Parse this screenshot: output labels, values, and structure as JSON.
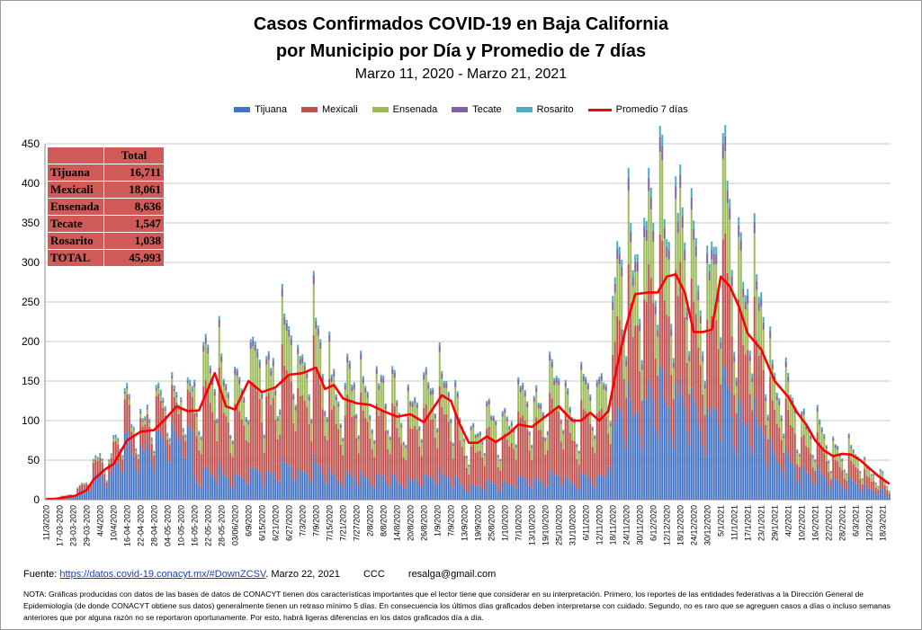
{
  "chart_data": {
    "type": "bar",
    "stacked": true,
    "title": "Casos Confirmados COVID-19 en Baja California",
    "title_line2": "por Municipio por Día y Promedio de 7 días",
    "subtitle": "Marzo 11, 2020  - Marzo 21, 2021",
    "ylim": [
      0,
      450
    ],
    "yticks": [
      0,
      50,
      100,
      150,
      200,
      250,
      300,
      350,
      400,
      450
    ],
    "grid": true,
    "legend_position": "top",
    "x_start": "2020-03-11",
    "x_end": "2021-03-21",
    "x_tick_labels": [
      "11/3/2020",
      "17-03-2020",
      "23-03-2020",
      "29-03-2020",
      "4/4/2020",
      "10/4/2020",
      "16-04-2020",
      "22-04-2020",
      "28-04-2020",
      "04-05-2020",
      "10-05-2020",
      "16-05-2020",
      "22-05-2020",
      "28-05-2020",
      "03/06/2020",
      "6/9/2020",
      "6/15/2020",
      "6/21/2020",
      "6/27/2020",
      "7/3/2020",
      "7/9/2020",
      "7/15/2020",
      "7/21/2020",
      "7/27/2020",
      "2/8/2020",
      "8/8/2020",
      "14/8/2020",
      "20/8/2020",
      "26/8/2020",
      "1/9/2020",
      "7/9/2020",
      "13/9/2020",
      "19/9/2020",
      "25/8/2020",
      "1/10/2020",
      "7/10/2020",
      "13/10/2020",
      "19/10/2020",
      "25/10/2020",
      "31/10/2020",
      "6/11/2020",
      "12/11/2020",
      "18/11/2020",
      "24/11/2020",
      "30/11/2020",
      "6/12/2020",
      "12/12/2020",
      "18/12/2020",
      "24/12/2020",
      "30/12/2020",
      "5/1/2021",
      "11/1/2021",
      "17/1/2021",
      "23/1/2021",
      "29/1/2021",
      "4/2/2021",
      "10/2/2021",
      "16/2/2021",
      "22/2/2021",
      "28/2/2021",
      "6/3/2021",
      "12/3/2021",
      "18/3/2021"
    ],
    "series": [
      {
        "name": "Tijuana",
        "color": "#4472c4"
      },
      {
        "name": "Mexicali",
        "color": "#c0504d"
      },
      {
        "name": "Ensenada",
        "color": "#9bbb59"
      },
      {
        "name": "Tecate",
        "color": "#8064a2"
      },
      {
        "name": "Rosarito",
        "color": "#4bacc6"
      }
    ],
    "line_series": {
      "name": "Promedio 7 días",
      "color": "#ff0000"
    },
    "daily_total_anchors": [
      [
        "2020-03-11",
        1
      ],
      [
        "2020-03-17",
        3
      ],
      [
        "2020-03-23",
        8
      ],
      [
        "2020-03-29",
        20
      ],
      [
        "2020-04-02",
        40
      ],
      [
        "2020-04-04",
        65
      ],
      [
        "2020-04-08",
        45
      ],
      [
        "2020-04-10",
        60
      ],
      [
        "2020-04-14",
        90
      ],
      [
        "2020-04-16",
        100
      ],
      [
        "2020-04-22",
        95
      ],
      [
        "2020-04-28",
        100
      ],
      [
        "2020-05-03",
        130
      ],
      [
        "2020-05-08",
        135
      ],
      [
        "2020-05-13",
        115
      ],
      [
        "2020-05-18",
        135
      ],
      [
        "2020-05-22",
        200
      ],
      [
        "2020-05-26",
        165
      ],
      [
        "2020-05-30",
        120
      ],
      [
        "2020-06-03",
        150
      ],
      [
        "2020-06-09",
        145
      ],
      [
        "2020-06-15",
        160
      ],
      [
        "2020-06-21",
        170
      ],
      [
        "2020-06-27",
        180
      ],
      [
        "2020-07-03",
        175
      ],
      [
        "2020-07-07",
        190
      ],
      [
        "2020-07-11",
        160
      ],
      [
        "2020-07-15",
        150
      ],
      [
        "2020-07-21",
        135
      ],
      [
        "2020-07-27",
        130
      ],
      [
        "2020-08-02",
        130
      ],
      [
        "2020-08-08",
        125
      ],
      [
        "2020-08-14",
        110
      ],
      [
        "2020-08-20",
        120
      ],
      [
        "2020-08-26",
        110
      ],
      [
        "2020-09-01",
        165
      ],
      [
        "2020-09-05",
        140
      ],
      [
        "2020-09-09",
        100
      ],
      [
        "2020-09-13",
        80
      ],
      [
        "2020-09-19",
        85
      ],
      [
        "2020-09-25",
        90
      ],
      [
        "2020-10-01",
        95
      ],
      [
        "2020-10-07",
        110
      ],
      [
        "2020-10-13",
        115
      ],
      [
        "2020-10-19",
        125
      ],
      [
        "2020-10-25",
        135
      ],
      [
        "2020-10-31",
        110
      ],
      [
        "2020-11-06",
        120
      ],
      [
        "2020-11-12",
        130
      ],
      [
        "2020-11-16",
        170
      ],
      [
        "2020-11-20",
        240
      ],
      [
        "2020-11-24",
        290
      ],
      [
        "2020-11-30",
        320
      ],
      [
        "2020-12-06",
        330
      ],
      [
        "2020-12-12",
        340
      ],
      [
        "2020-12-18",
        345
      ],
      [
        "2020-12-21",
        290
      ],
      [
        "2020-12-24",
        270
      ],
      [
        "2020-12-30",
        260
      ],
      [
        "2021-01-05",
        330
      ],
      [
        "2021-01-09",
        320
      ],
      [
        "2021-01-13",
        280
      ],
      [
        "2021-01-17",
        250
      ],
      [
        "2021-01-23",
        210
      ],
      [
        "2021-01-29",
        150
      ],
      [
        "2021-02-04",
        110
      ],
      [
        "2021-02-10",
        95
      ],
      [
        "2021-02-16",
        80
      ],
      [
        "2021-02-22",
        65
      ],
      [
        "2021-02-28",
        60
      ],
      [
        "2021-03-06",
        50
      ],
      [
        "2021-03-12",
        38
      ],
      [
        "2021-03-18",
        25
      ],
      [
        "2021-03-21",
        10
      ]
    ],
    "share_by_phase": [
      {
        "until": "2020-05-15",
        "Tijuana": 0.6,
        "Mexicali": 0.3,
        "Ensenada": 0.05,
        "Tecate": 0.02,
        "Rosarito": 0.03
      },
      {
        "until": "2020-11-15",
        "Tijuana": 0.2,
        "Mexicali": 0.52,
        "Ensenada": 0.22,
        "Tecate": 0.04,
        "Rosarito": 0.02
      },
      {
        "until": "2021-03-21",
        "Tijuana": 0.36,
        "Mexicali": 0.35,
        "Ensenada": 0.22,
        "Tecate": 0.04,
        "Rosarito": 0.03
      }
    ],
    "avg7_anchors": [
      [
        "2020-03-15",
        1
      ],
      [
        "2020-03-24",
        5
      ],
      [
        "2020-03-29",
        12
      ],
      [
        "2020-04-01",
        25
      ],
      [
        "2020-04-06",
        38
      ],
      [
        "2020-04-10",
        45
      ],
      [
        "2020-04-16",
        75
      ],
      [
        "2020-04-22",
        86
      ],
      [
        "2020-04-28",
        88
      ],
      [
        "2020-05-03",
        102
      ],
      [
        "2020-05-08",
        118
      ],
      [
        "2020-05-13",
        112
      ],
      [
        "2020-05-18",
        113
      ],
      [
        "2020-05-22",
        140
      ],
      [
        "2020-05-25",
        160
      ],
      [
        "2020-05-30",
        118
      ],
      [
        "2020-06-03",
        114
      ],
      [
        "2020-06-09",
        150
      ],
      [
        "2020-06-15",
        136
      ],
      [
        "2020-06-21",
        142
      ],
      [
        "2020-06-27",
        158
      ],
      [
        "2020-07-03",
        160
      ],
      [
        "2020-07-09",
        167
      ],
      [
        "2020-07-13",
        140
      ],
      [
        "2020-07-17",
        145
      ],
      [
        "2020-07-21",
        128
      ],
      [
        "2020-07-27",
        122
      ],
      [
        "2020-08-02",
        120
      ],
      [
        "2020-08-08",
        112
      ],
      [
        "2020-08-14",
        105
      ],
      [
        "2020-08-20",
        108
      ],
      [
        "2020-08-26",
        98
      ],
      [
        "2020-09-03",
        132
      ],
      [
        "2020-09-07",
        125
      ],
      [
        "2020-09-11",
        95
      ],
      [
        "2020-09-15",
        72
      ],
      [
        "2020-09-19",
        72
      ],
      [
        "2020-09-23",
        80
      ],
      [
        "2020-09-27",
        73
      ],
      [
        "2020-10-03",
        84
      ],
      [
        "2020-10-07",
        95
      ],
      [
        "2020-10-13",
        92
      ],
      [
        "2020-10-19",
        105
      ],
      [
        "2020-10-25",
        118
      ],
      [
        "2020-10-31",
        100
      ],
      [
        "2020-11-04",
        100
      ],
      [
        "2020-11-08",
        110
      ],
      [
        "2020-11-12",
        100
      ],
      [
        "2020-11-16",
        112
      ],
      [
        "2020-11-20",
        170
      ],
      [
        "2020-11-24",
        220
      ],
      [
        "2020-11-28",
        260
      ],
      [
        "2020-12-04",
        262
      ],
      [
        "2020-12-08",
        262
      ],
      [
        "2020-12-12",
        282
      ],
      [
        "2020-12-16",
        285
      ],
      [
        "2020-12-20",
        262
      ],
      [
        "2020-12-24",
        212
      ],
      [
        "2020-12-28",
        212
      ],
      [
        "2021-01-01",
        215
      ],
      [
        "2021-01-05",
        282
      ],
      [
        "2021-01-09",
        270
      ],
      [
        "2021-01-13",
        245
      ],
      [
        "2021-01-17",
        210
      ],
      [
        "2021-01-23",
        190
      ],
      [
        "2021-01-29",
        150
      ],
      [
        "2021-02-04",
        130
      ],
      [
        "2021-02-08",
        110
      ],
      [
        "2021-02-12",
        95
      ],
      [
        "2021-02-16",
        75
      ],
      [
        "2021-02-20",
        62
      ],
      [
        "2021-02-24",
        55
      ],
      [
        "2021-02-28",
        58
      ],
      [
        "2021-03-04",
        57
      ],
      [
        "2021-03-08",
        50
      ],
      [
        "2021-03-12",
        40
      ],
      [
        "2021-03-16",
        30
      ],
      [
        "2021-03-21",
        20
      ]
    ]
  },
  "legend": [
    "Tijuana",
    "Mexicali",
    "Ensenada",
    "Tecate",
    "Rosarito",
    "Promedio 7 días"
  ],
  "totals_table": {
    "header": "Total",
    "rows": [
      {
        "label": "Tijuana",
        "value": "16,711"
      },
      {
        "label": "Mexicali",
        "value": "18,061"
      },
      {
        "label": "Ensenada",
        "value": "8,636"
      },
      {
        "label": "Tecate",
        "value": "1,547"
      },
      {
        "label": "Rosarito",
        "value": "1,038"
      },
      {
        "label": "TOTAL",
        "value": "45,993"
      }
    ]
  },
  "footer": {
    "prefix": "Fuente:",
    "link": "https://datos.covid-19.conacyt.mx/#DownZCSV",
    "date": "Marzo 22, 2021",
    "ccc": "CCC",
    "email": "resalga@gmail.com"
  },
  "note": "NOTA: Gráficas producidas con datos de las bases de datos de CONACYT tienen dos características importantes que el lector tiene que considerar en su interpretación. Primero, los reportes de las entidades federativas a la Dirección General de Epidemiología (de donde CONACYT obtiene sus datos) generalmente tienen un retraso mínimo 5 días. En consecuencia los últimos días graficados deben interpretarse con cuidado. Segundo, no es raro que se agreguen casos a días o incluso semanas anteriores que por alguna razón no se reportaron oportunamente. Por esto, habrá ligeras diferencias en los datos graficados día a día."
}
